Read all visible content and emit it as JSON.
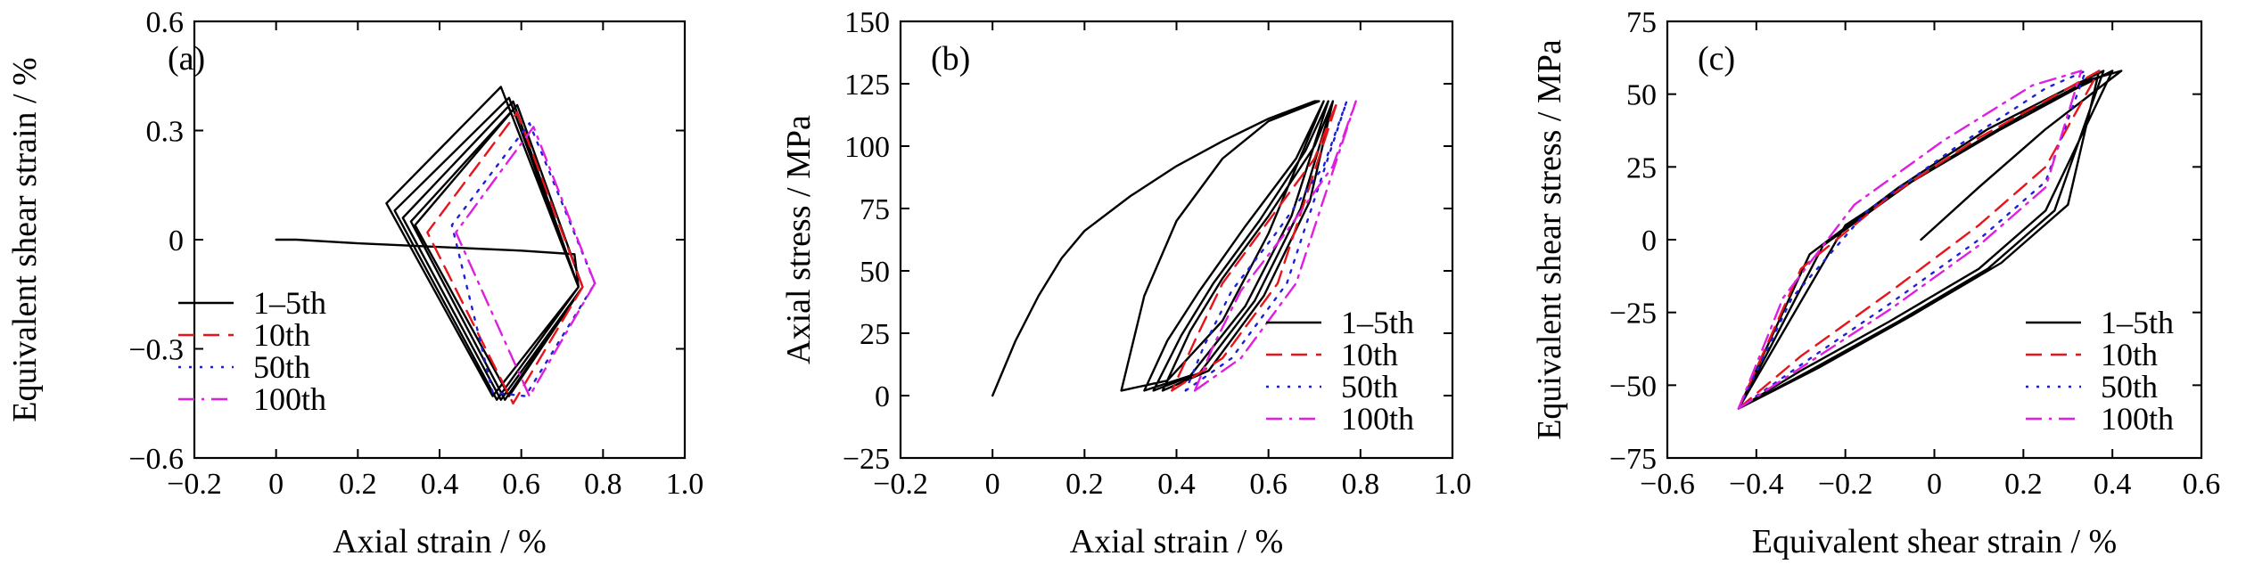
{
  "colors": {
    "axis": "#000000",
    "s1": "#000000",
    "s10": "#e8141b",
    "s50": "#1f1fd6",
    "s100": "#e01ee0"
  },
  "chart_data": [
    {
      "type": "line",
      "panel_label": "(a)",
      "xlabel": "Axial strain / %",
      "ylabel": "Equivalent shear strain / %",
      "xlim": [
        -0.2,
        1.0
      ],
      "ylim": [
        -0.6,
        0.6
      ],
      "xticks": [
        -0.2,
        0,
        0.2,
        0.4,
        0.6,
        0.8,
        1.0
      ],
      "xtick_labels": [
        "−0.2",
        "0",
        "0.2",
        "0.4",
        "0.6",
        "0.8",
        "1.0"
      ],
      "yticks": [
        -0.6,
        -0.3,
        0,
        0.3,
        0.6
      ],
      "ytick_labels": [
        "−0.6",
        "−0.3",
        "0",
        "0.3",
        "0.6"
      ],
      "legend_position": "lower-left",
      "series": [
        {
          "name": "1–5th",
          "style": "solid",
          "color": "#000000",
          "x": [
            0,
            0.05,
            0.2,
            0.4,
            0.6,
            0.73,
            0.74,
            0.55,
            0.27,
            0.53,
            0.74,
            0.57,
            0.29,
            0.54,
            0.74,
            0.58,
            0.31,
            0.55,
            0.75,
            0.59,
            0.33,
            0.56,
            0.75,
            0.59,
            0.34,
            0.57,
            0.75
          ],
          "y": [
            0,
            0.0,
            -0.01,
            -0.02,
            -0.03,
            -0.04,
            -0.13,
            0.42,
            0.1,
            -0.43,
            -0.13,
            0.39,
            0.08,
            -0.44,
            -0.13,
            0.38,
            0.06,
            -0.44,
            -0.13,
            0.37,
            0.05,
            -0.44,
            -0.13,
            0.37,
            0.04,
            -0.43,
            -0.13
          ]
        },
        {
          "name": "10th",
          "style": "dash",
          "color": "#e8141b",
          "x": [
            0.75,
            0.59,
            0.37,
            0.58,
            0.75
          ],
          "y": [
            -0.13,
            0.35,
            0.02,
            -0.45,
            -0.13
          ]
        },
        {
          "name": "50th",
          "style": "dot",
          "color": "#1f1fd6",
          "x": [
            0.78,
            0.62,
            0.43,
            0.53,
            0.61,
            0.78
          ],
          "y": [
            -0.12,
            0.32,
            0.04,
            -0.42,
            -0.43,
            -0.12
          ]
        },
        {
          "name": "100th",
          "style": "dashdot",
          "color": "#e01ee0",
          "x": [
            0.78,
            0.63,
            0.44,
            0.62,
            0.78
          ],
          "y": [
            -0.12,
            0.31,
            0.02,
            -0.43,
            -0.12
          ]
        }
      ]
    },
    {
      "type": "line",
      "panel_label": "(b)",
      "xlabel": "Axial strain / %",
      "ylabel": "Axial stress / MPa",
      "xlim": [
        -0.2,
        1.0
      ],
      "ylim": [
        -25,
        150
      ],
      "xticks": [
        -0.2,
        0,
        0.2,
        0.4,
        0.6,
        0.8,
        1.0
      ],
      "xtick_labels": [
        "−0.2",
        "0",
        "0.2",
        "0.4",
        "0.6",
        "0.8",
        "1.0"
      ],
      "yticks": [
        -25,
        0,
        25,
        50,
        75,
        100,
        125,
        150
      ],
      "ytick_labels": [
        "−25",
        "0",
        "25",
        "50",
        "75",
        "100",
        "125",
        "150"
      ],
      "legend_position": "lower-right",
      "series": [
        {
          "name": "1–5th",
          "style": "solid",
          "color": "#000000",
          "x": [
            0,
            0.05,
            0.1,
            0.15,
            0.2,
            0.3,
            0.4,
            0.5,
            0.6,
            0.7,
            0.71,
            0.6,
            0.5,
            0.4,
            0.33,
            0.28,
            0.38,
            0.5,
            0.6,
            0.72,
            0.66,
            0.55,
            0.45,
            0.38,
            0.33,
            0.43,
            0.55,
            0.65,
            0.73,
            0.68,
            0.58,
            0.48,
            0.41,
            0.35,
            0.45,
            0.57,
            0.67,
            0.74,
            0.7,
            0.6,
            0.5,
            0.43,
            0.37,
            0.47,
            0.59,
            0.69,
            0.74
          ],
          "y": [
            0,
            22,
            40,
            55,
            66,
            80,
            92,
            102,
            111,
            118,
            118,
            110,
            95,
            70,
            40,
            2,
            6,
            30,
            65,
            118,
            95,
            68,
            42,
            22,
            2,
            8,
            36,
            72,
            118,
            98,
            70,
            45,
            24,
            2,
            9,
            38,
            75,
            118,
            100,
            72,
            47,
            26,
            2,
            10,
            40,
            78,
            118
          ]
        },
        {
          "name": "10th",
          "style": "dash",
          "color": "#e8141b",
          "x": [
            0.39,
            0.5,
            0.62,
            0.75,
            0.7,
            0.6,
            0.5,
            0.44,
            0.39
          ],
          "y": [
            2,
            15,
            45,
            118,
            95,
            70,
            45,
            22,
            2
          ]
        },
        {
          "name": "50th",
          "style": "dot",
          "color": "#1f1fd6",
          "x": [
            0.42,
            0.52,
            0.64,
            0.77,
            0.72,
            0.62,
            0.52,
            0.46,
            0.42
          ],
          "y": [
            2,
            15,
            45,
            118,
            92,
            66,
            42,
            20,
            2
          ]
        },
        {
          "name": "100th",
          "style": "dashdot",
          "color": "#e01ee0",
          "x": [
            0.44,
            0.54,
            0.66,
            0.79,
            0.74,
            0.64,
            0.54,
            0.48,
            0.44
          ],
          "y": [
            2,
            15,
            45,
            118,
            92,
            66,
            42,
            20,
            2
          ]
        }
      ]
    },
    {
      "type": "line",
      "panel_label": "(c)",
      "xlabel": "Equivalent shear strain / %",
      "ylabel": "Equivalent shear stress / MPa",
      "xlim": [
        -0.6,
        0.6
      ],
      "ylim": [
        -75,
        75
      ],
      "xticks": [
        -0.6,
        -0.4,
        -0.2,
        0,
        0.2,
        0.4,
        0.6
      ],
      "xtick_labels": [
        "−0.6",
        "−0.4",
        "−0.2",
        "0",
        "0.2",
        "0.4",
        "0.6"
      ],
      "yticks": [
        -75,
        -50,
        -25,
        0,
        25,
        50,
        75
      ],
      "ytick_labels": [
        "−75",
        "−50",
        "−25",
        "0",
        "25",
        "50",
        "75"
      ],
      "legend_position": "lower-right",
      "series": [
        {
          "name": "1–5th",
          "style": "solid",
          "color": "#000000",
          "x": [
            -0.03,
            0.1,
            0.25,
            0.42,
            0.35,
            0.2,
            0.0,
            -0.2,
            -0.44,
            -0.3,
            -0.1,
            0.1,
            0.25,
            0.4,
            0.32,
            0.15,
            -0.05,
            -0.25,
            -0.44,
            -0.28,
            -0.08,
            0.12,
            0.27,
            0.38,
            0.3,
            0.12,
            -0.08,
            -0.28,
            -0.44,
            -0.26,
            -0.05,
            0.15,
            0.3,
            0.37
          ],
          "y": [
            0,
            18,
            38,
            58,
            55,
            43,
            25,
            5,
            -58,
            -45,
            -28,
            -10,
            10,
            58,
            52,
            38,
            20,
            -2,
            -58,
            -45,
            -28,
            -10,
            10,
            58,
            52,
            38,
            18,
            -5,
            -58,
            -44,
            -26,
            -8,
            12,
            58
          ]
        },
        {
          "name": "10th",
          "style": "dash",
          "color": "#e8141b",
          "x": [
            -0.44,
            -0.3,
            -0.1,
            0.1,
            0.25,
            0.37,
            0.3,
            0.1,
            -0.1,
            -0.3,
            -0.44
          ],
          "y": [
            -58,
            -40,
            -18,
            5,
            25,
            58,
            52,
            35,
            15,
            -10,
            -58
          ]
        },
        {
          "name": "50th",
          "style": "dot",
          "color": "#1f1fd6",
          "x": [
            -0.44,
            -0.3,
            -0.1,
            0.1,
            0.25,
            0.34,
            0.25,
            0.05,
            -0.15,
            -0.32,
            -0.44
          ],
          "y": [
            -58,
            -43,
            -22,
            0,
            20,
            58,
            52,
            32,
            10,
            -20,
            -58
          ]
        },
        {
          "name": "100th",
          "style": "dashdot",
          "color": "#e01ee0",
          "x": [
            -0.44,
            -0.3,
            -0.1,
            0.1,
            0.25,
            0.33,
            0.22,
            0.02,
            -0.18,
            -0.34,
            -0.44
          ],
          "y": [
            -58,
            -44,
            -24,
            -2,
            18,
            58,
            53,
            34,
            12,
            -20,
            -58
          ]
        }
      ]
    }
  ]
}
